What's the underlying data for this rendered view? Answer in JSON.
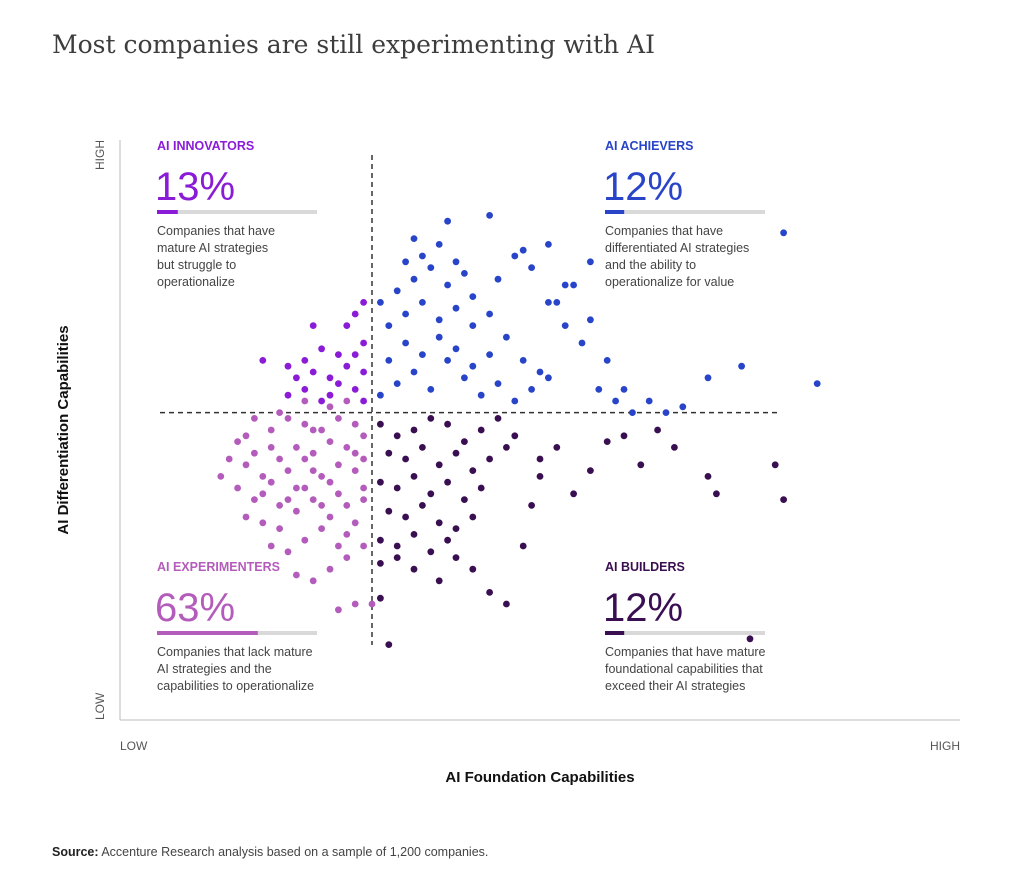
{
  "title": "Most companies are still experimenting with AI",
  "source": {
    "label": "Source:",
    "text": "Accenture Research analysis based on a sample of 1,200 companies."
  },
  "colors": {
    "innovators": "#8a1bd6",
    "achievers": "#2844c8",
    "experimenters": "#b45cbb",
    "builders": "#3a0f52",
    "track": "#d9d9d9",
    "axis": "#bbbbbb",
    "text": "#333333"
  },
  "chart_data": {
    "type": "scatter",
    "xlabel": "AI Foundation Capabilities",
    "ylabel": "AI Differentiation Capabilities",
    "x_ticks": [
      "LOW",
      "HIGH"
    ],
    "y_ticks": [
      "LOW",
      "HIGH"
    ],
    "xlim": [
      0,
      100
    ],
    "ylim": [
      0,
      100
    ],
    "divider": {
      "x": 30,
      "y": 53
    },
    "quadrants": [
      {
        "key": "innovators",
        "label": "AI INNOVATORS",
        "percent": "13%",
        "share": 0.13,
        "desc": [
          "Companies that have",
          "mature AI strategies",
          "but struggle to",
          "operationalize"
        ]
      },
      {
        "key": "achievers",
        "label": "AI ACHIEVERS",
        "percent": "12%",
        "share": 0.12,
        "desc": [
          "Companies that have",
          "differentiated AI strategies",
          "and the ability to",
          "operationalize for value"
        ]
      },
      {
        "key": "experimenters",
        "label": "AI EXPERIMENTERS",
        "percent": "63%",
        "share": 0.63,
        "desc": [
          "Companies that lack mature",
          "AI strategies and the",
          "capabilities to operationalize"
        ]
      },
      {
        "key": "builders",
        "label": "AI BUILDERS",
        "percent": "12%",
        "share": 0.12,
        "desc": [
          "Companies that have mature",
          "foundational capabilities that",
          "exceed their AI strategies"
        ]
      }
    ],
    "sample_size": 1200,
    "series": [
      {
        "name": "AI EXPERIMENTERS",
        "color": "#b45cbb",
        "points": [
          [
            14,
            48
          ],
          [
            16,
            46
          ],
          [
            18,
            50
          ],
          [
            20,
            52
          ],
          [
            22,
            51
          ],
          [
            24,
            50
          ],
          [
            26,
            52
          ],
          [
            28,
            51
          ],
          [
            15,
            44
          ],
          [
            17,
            42
          ],
          [
            19,
            45
          ],
          [
            21,
            47
          ],
          [
            23,
            46
          ],
          [
            25,
            48
          ],
          [
            27,
            47
          ],
          [
            29,
            49
          ],
          [
            14,
            40
          ],
          [
            16,
            38
          ],
          [
            18,
            41
          ],
          [
            20,
            43
          ],
          [
            22,
            40
          ],
          [
            24,
            42
          ],
          [
            26,
            44
          ],
          [
            28,
            43
          ],
          [
            15,
            35
          ],
          [
            17,
            34
          ],
          [
            19,
            37
          ],
          [
            21,
            36
          ],
          [
            23,
            38
          ],
          [
            25,
            35
          ],
          [
            27,
            37
          ],
          [
            29,
            40
          ],
          [
            18,
            30
          ],
          [
            20,
            29
          ],
          [
            22,
            31
          ],
          [
            24,
            33
          ],
          [
            26,
            30
          ],
          [
            28,
            34
          ],
          [
            21,
            25
          ],
          [
            23,
            24
          ],
          [
            25,
            26
          ],
          [
            27,
            28
          ],
          [
            28,
            20
          ],
          [
            26,
            19
          ],
          [
            30,
            20
          ],
          [
            29,
            45
          ],
          [
            29,
            38
          ],
          [
            13,
            45
          ],
          [
            12,
            42
          ],
          [
            19,
            53
          ],
          [
            22,
            55
          ],
          [
            25,
            54
          ],
          [
            27,
            55
          ],
          [
            16,
            52
          ],
          [
            29,
            30
          ],
          [
            20,
            38
          ],
          [
            22,
            45
          ],
          [
            24,
            37
          ],
          [
            26,
            39
          ],
          [
            18,
            47
          ],
          [
            28,
            46
          ],
          [
            15,
            49
          ],
          [
            23,
            50
          ],
          [
            21,
            40
          ],
          [
            19,
            33
          ],
          [
            27,
            32
          ],
          [
            25,
            41
          ],
          [
            17,
            39
          ],
          [
            23,
            43
          ]
        ]
      },
      {
        "name": "AI INNOVATORS",
        "color": "#8a1bd6",
        "points": [
          [
            20,
            56
          ],
          [
            22,
            57
          ],
          [
            24,
            55
          ],
          [
            26,
            58
          ],
          [
            28,
            57
          ],
          [
            29,
            60
          ],
          [
            27,
            61
          ],
          [
            25,
            59
          ],
          [
            23,
            60
          ],
          [
            21,
            59
          ],
          [
            28,
            63
          ],
          [
            26,
            63
          ],
          [
            29,
            65
          ],
          [
            23,
            68
          ],
          [
            27,
            68
          ],
          [
            24,
            64
          ],
          [
            28,
            70
          ],
          [
            29,
            55
          ],
          [
            25,
            56
          ],
          [
            20,
            61
          ],
          [
            17,
            62
          ],
          [
            22,
            62
          ],
          [
            29,
            72
          ]
        ]
      },
      {
        "name": "AI ACHIEVERS",
        "color": "#2844c8",
        "points": [
          [
            31,
            56
          ],
          [
            33,
            58
          ],
          [
            35,
            60
          ],
          [
            37,
            57
          ],
          [
            39,
            62
          ],
          [
            41,
            59
          ],
          [
            43,
            56
          ],
          [
            45,
            58
          ],
          [
            47,
            55
          ],
          [
            49,
            57
          ],
          [
            51,
            59
          ],
          [
            32,
            62
          ],
          [
            34,
            65
          ],
          [
            36,
            63
          ],
          [
            38,
            66
          ],
          [
            40,
            64
          ],
          [
            42,
            61
          ],
          [
            44,
            63
          ],
          [
            32,
            68
          ],
          [
            34,
            70
          ],
          [
            36,
            72
          ],
          [
            38,
            69
          ],
          [
            40,
            71
          ],
          [
            42,
            68
          ],
          [
            33,
            74
          ],
          [
            35,
            76
          ],
          [
            37,
            78
          ],
          [
            39,
            75
          ],
          [
            41,
            77
          ],
          [
            36,
            80
          ],
          [
            38,
            82
          ],
          [
            40,
            79
          ],
          [
            42,
            73
          ],
          [
            44,
            70
          ],
          [
            46,
            66
          ],
          [
            48,
            62
          ],
          [
            50,
            60
          ],
          [
            52,
            72
          ],
          [
            54,
            75
          ],
          [
            56,
            69
          ],
          [
            58,
            62
          ],
          [
            60,
            57
          ],
          [
            45,
            76
          ],
          [
            47,
            80
          ],
          [
            49,
            78
          ],
          [
            51,
            72
          ],
          [
            53,
            68
          ],
          [
            55,
            65
          ],
          [
            57,
            57
          ],
          [
            59,
            55
          ],
          [
            61,
            53
          ],
          [
            63,
            55
          ],
          [
            65,
            53
          ],
          [
            67,
            54
          ],
          [
            70,
            59
          ],
          [
            74,
            61
          ],
          [
            79,
            84
          ],
          [
            83,
            58
          ],
          [
            35,
            83
          ],
          [
            39,
            86
          ],
          [
            44,
            87
          ],
          [
            48,
            81
          ],
          [
            51,
            82
          ],
          [
            53,
            75
          ],
          [
            56,
            79
          ],
          [
            34,
            79
          ],
          [
            31,
            72
          ]
        ]
      },
      {
        "name": "AI BUILDERS",
        "color": "#3a0f52",
        "points": [
          [
            31,
            51
          ],
          [
            33,
            49
          ],
          [
            35,
            50
          ],
          [
            37,
            52
          ],
          [
            39,
            51
          ],
          [
            41,
            48
          ],
          [
            43,
            50
          ],
          [
            45,
            52
          ],
          [
            47,
            49
          ],
          [
            32,
            46
          ],
          [
            34,
            45
          ],
          [
            36,
            47
          ],
          [
            38,
            44
          ],
          [
            40,
            46
          ],
          [
            42,
            43
          ],
          [
            44,
            45
          ],
          [
            46,
            47
          ],
          [
            31,
            41
          ],
          [
            33,
            40
          ],
          [
            35,
            42
          ],
          [
            37,
            39
          ],
          [
            39,
            41
          ],
          [
            41,
            38
          ],
          [
            43,
            40
          ],
          [
            32,
            36
          ],
          [
            34,
            35
          ],
          [
            36,
            37
          ],
          [
            38,
            34
          ],
          [
            40,
            33
          ],
          [
            42,
            35
          ],
          [
            31,
            31
          ],
          [
            33,
            30
          ],
          [
            35,
            32
          ],
          [
            37,
            29
          ],
          [
            39,
            31
          ],
          [
            31,
            27
          ],
          [
            33,
            28
          ],
          [
            35,
            26
          ],
          [
            38,
            24
          ],
          [
            40,
            28
          ],
          [
            42,
            26
          ],
          [
            44,
            22
          ],
          [
            46,
            20
          ],
          [
            48,
            30
          ],
          [
            49,
            37
          ],
          [
            50,
            42
          ],
          [
            54,
            39
          ],
          [
            56,
            43
          ],
          [
            58,
            48
          ],
          [
            60,
            49
          ],
          [
            62,
            44
          ],
          [
            64,
            50
          ],
          [
            66,
            47
          ],
          [
            70,
            42
          ],
          [
            71,
            39
          ],
          [
            78,
            44
          ],
          [
            79,
            38
          ],
          [
            75,
            14
          ],
          [
            31,
            21
          ],
          [
            32,
            13
          ],
          [
            50,
            45
          ],
          [
            52,
            47
          ]
        ]
      }
    ]
  }
}
